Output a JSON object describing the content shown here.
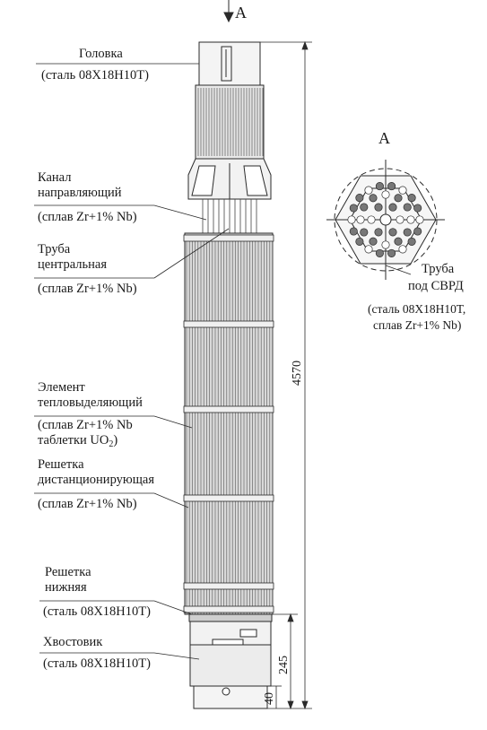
{
  "view_marks": {
    "top": "A",
    "section": "A"
  },
  "labels": {
    "head": {
      "line1": "Головка",
      "line2": "(сталь 08Х18Н10Т)"
    },
    "guide_channel": {
      "line1": "Канал",
      "line2": "направляющий",
      "line3": "(сплав Zr+1% Nb)"
    },
    "central_tube": {
      "line1": "Труба",
      "line2": "центральная",
      "line3": "(сплав Zr+1% Nb)"
    },
    "fuel_element": {
      "line1": "Элемент",
      "line2": "тепловыделяющий",
      "line3": "(сплав Zr+1% Nb",
      "line4_prefix": "таблетки UO",
      "line4_sub": "2",
      "line4_suffix": ")"
    },
    "spacer_grid": {
      "line1": "Решетка",
      "line2": "дистанционирующая",
      "line3": "(сплав Zr+1% Nb)"
    },
    "bottom_grid": {
      "line1": "Решетка",
      "line2": "нижняя",
      "line3": "(сталь 08Х18Н10Т)"
    },
    "shank": {
      "line1": "Хвостовик",
      "line2": "(сталь 08Х18Н10Т)"
    },
    "svrd_tube": {
      "line1": "Труба",
      "line2": "под СВРД",
      "line3": "(сталь 08Х18Н10Т,",
      "line4": "сплав Zr+1% Nb)"
    }
  },
  "dimensions": {
    "total_length": "4570",
    "shank_length": "245",
    "shank_tip": "40"
  }
}
